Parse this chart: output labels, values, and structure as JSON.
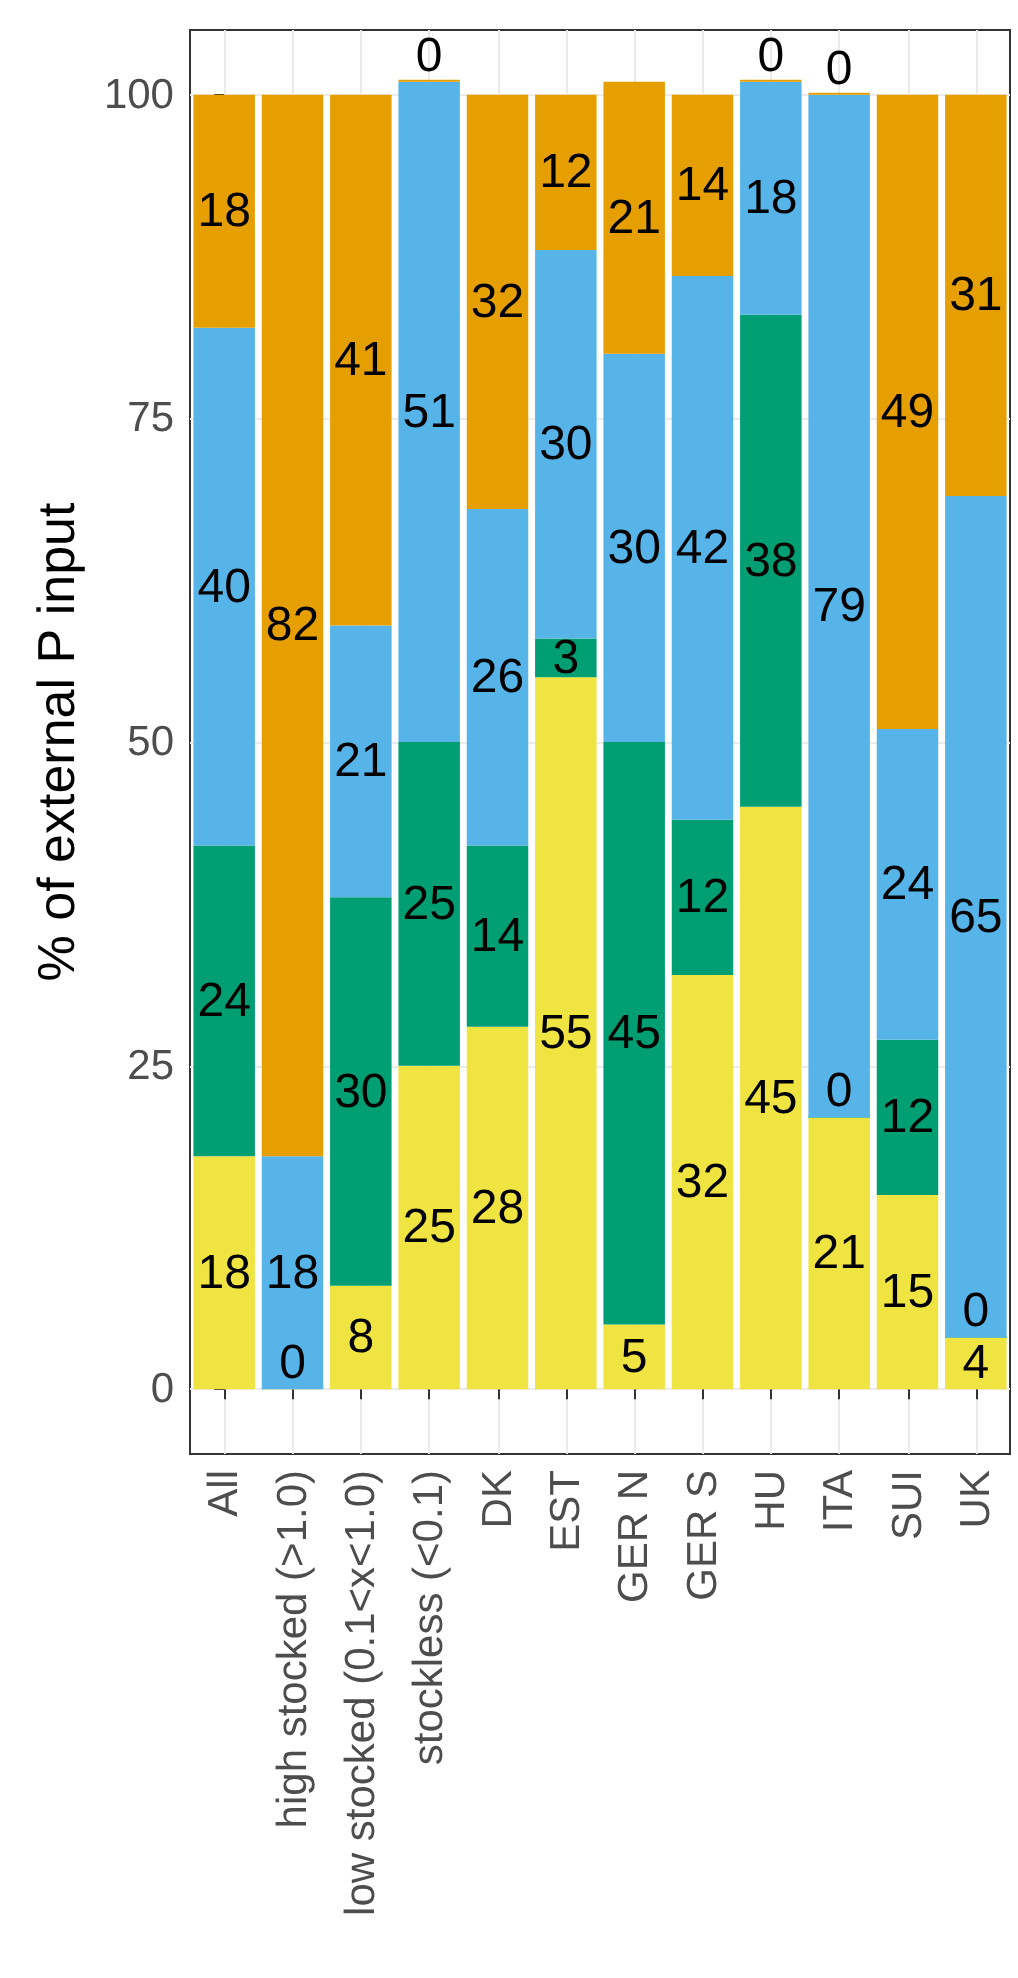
{
  "chart_data": {
    "type": "bar",
    "stacked": true,
    "ylabel": "% of external P input",
    "categories": [
      "All",
      "high stocked (>1.0)",
      "low stocked (0.1<x<1.0)",
      "stockless (<0.1)",
      "DK",
      "EST",
      "GER N",
      "GER S",
      "HU",
      "ITA",
      "SUI",
      "UK"
    ],
    "series": [
      {
        "color": "#f0e442",
        "values": [
          18,
          0,
          8,
          25,
          28,
          55,
          5,
          32,
          45,
          21,
          15,
          4
        ]
      },
      {
        "color": "#009e73",
        "values": [
          24,
          null,
          30,
          25,
          14,
          3,
          45,
          12,
          38,
          0,
          12,
          0
        ]
      },
      {
        "color": "#56b4e9",
        "values": [
          40,
          18,
          21,
          51,
          26,
          30,
          30,
          42,
          18,
          79,
          24,
          65
        ]
      },
      {
        "color": "#e69f00",
        "values": [
          18,
          82,
          41,
          0,
          32,
          12,
          21,
          14,
          0,
          0,
          49,
          31
        ]
      }
    ],
    "ylim": [
      -5,
      105
    ],
    "yticks": [
      0,
      25,
      50,
      75,
      100
    ],
    "grid": true,
    "data_labels": true
  }
}
